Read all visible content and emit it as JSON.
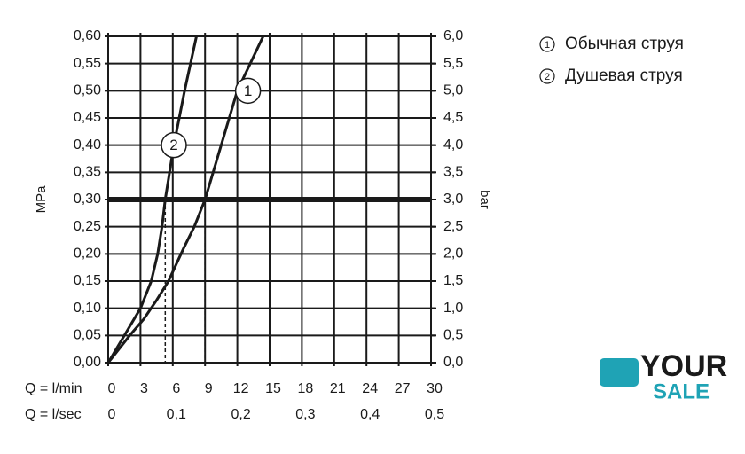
{
  "chart_data": {
    "type": "line",
    "ylabel": "MPa",
    "y2label": "bar",
    "xlabel": "Q = l/min",
    "x2label": "Q = l/sec",
    "xlim": [
      0,
      30
    ],
    "xticks": [
      0,
      3,
      6,
      9,
      12,
      15,
      18,
      21,
      24,
      27,
      30
    ],
    "x2lim": [
      0,
      0.5
    ],
    "x2ticks": [
      0,
      {
        "value": 0.1,
        "label": "0,1"
      },
      {
        "value": 0.2,
        "label": "0,2"
      },
      {
        "value": 0.3,
        "label": "0,3"
      },
      {
        "value": 0.4,
        "label": "0,4"
      },
      {
        "value": 0.5,
        "label": "0,5"
      }
    ],
    "ylim": [
      0,
      0.6
    ],
    "yticks": [
      {
        "value": 0,
        "label": "0,00"
      },
      {
        "value": 0.05,
        "label": "0,05"
      },
      {
        "value": 0.1,
        "label": "0,10"
      },
      {
        "value": 0.15,
        "label": "0,15"
      },
      {
        "value": 0.2,
        "label": "0,20"
      },
      {
        "value": 0.25,
        "label": "0,25"
      },
      {
        "value": 0.3,
        "label": "0,30"
      },
      {
        "value": 0.35,
        "label": "0,35"
      },
      {
        "value": 0.4,
        "label": "0,40"
      },
      {
        "value": 0.45,
        "label": "0,45"
      },
      {
        "value": 0.5,
        "label": "0,50"
      },
      {
        "value": 0.55,
        "label": "0,55"
      },
      {
        "value": 0.6,
        "label": "0,60"
      }
    ],
    "y2lim": [
      0,
      6
    ],
    "y2ticks": [
      {
        "value": 0,
        "label": "0,0"
      },
      {
        "value": 0.5,
        "label": "0,5"
      },
      {
        "value": 1,
        "label": "1,0"
      },
      {
        "value": 1.5,
        "label": "1,5"
      },
      {
        "value": 2,
        "label": "2,0"
      },
      {
        "value": 2.5,
        "label": "2,5"
      },
      {
        "value": 3,
        "label": "3,0"
      },
      {
        "value": 3.5,
        "label": "3,5"
      },
      {
        "value": 4,
        "label": "4,0"
      },
      {
        "value": 4.5,
        "label": "4,5"
      },
      {
        "value": 5,
        "label": "5,0"
      },
      {
        "value": 5.5,
        "label": "5,5"
      },
      {
        "value": 6,
        "label": "6,0"
      }
    ],
    "grid": true,
    "reference_pressure": 0.3,
    "series": [
      {
        "name": "Обычная струя",
        "label": "1",
        "color": "#1a1a1a",
        "x": [
          0,
          1,
          2,
          3.3,
          4.5,
          5.6,
          7,
          8,
          9,
          10.5,
          12,
          13.2,
          14.4
        ],
        "values": [
          0,
          0.025,
          0.05,
          0.08,
          0.115,
          0.15,
          0.21,
          0.25,
          0.3,
          0.4,
          0.5,
          0.55,
          0.6
        ]
      },
      {
        "name": "Душевая струя",
        "label": "2",
        "color": "#1a1a1a",
        "x": [
          0,
          1.5,
          3,
          4,
          4.6,
          5,
          5.3,
          5.7,
          6.1,
          7.1,
          8.2
        ],
        "values": [
          0,
          0.05,
          0.1,
          0.15,
          0.2,
          0.25,
          0.3,
          0.35,
          0.4,
          0.5,
          0.6
        ]
      }
    ]
  },
  "watermark": {
    "top": "YOUR",
    "bottom": "SALE"
  }
}
